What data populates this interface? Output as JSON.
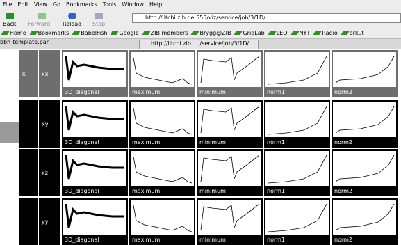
{
  "menu": [
    "File",
    "Edit",
    "View",
    "Go",
    "Bookmarks",
    "Tools",
    "Window",
    "Help"
  ],
  "toolbar": {
    "back": "Back",
    "forward": "Forward",
    "reload": "Reload",
    "stop": "Stop",
    "url": "http://litchi.zib.de:555/viz/service/job/3/1D/"
  },
  "bookmarks": [
    "Home",
    "Bookmarks",
    "BabelFish",
    "Google",
    "ZIB members",
    "Brygg@ZIB",
    "GridLab",
    "LEO",
    "NYT",
    "Radio",
    "orkut"
  ],
  "tabs": [
    "bbh-template.par",
    "http://litchi.zib...../service/job/3/1D/"
  ],
  "grid": {
    "rows": [
      {
        "key": "k",
        "label": "xx",
        "plots": [
          "3D_diagonal",
          "maximum",
          "minimum",
          "norm1",
          "norm2"
        ]
      },
      {
        "label": "xy",
        "plots": [
          "3D_diagonal",
          "maximum",
          "minimum",
          "norm1",
          "norm2"
        ]
      },
      {
        "label": "xz",
        "plots": [
          "3D_diagonal",
          "maximum",
          "minimum",
          "norm1",
          "norm2"
        ]
      },
      {
        "label": "yy",
        "plots": [
          "3D_diagonal",
          "maximum",
          "minimum",
          "norm1",
          "norm2"
        ]
      }
    ]
  }
}
